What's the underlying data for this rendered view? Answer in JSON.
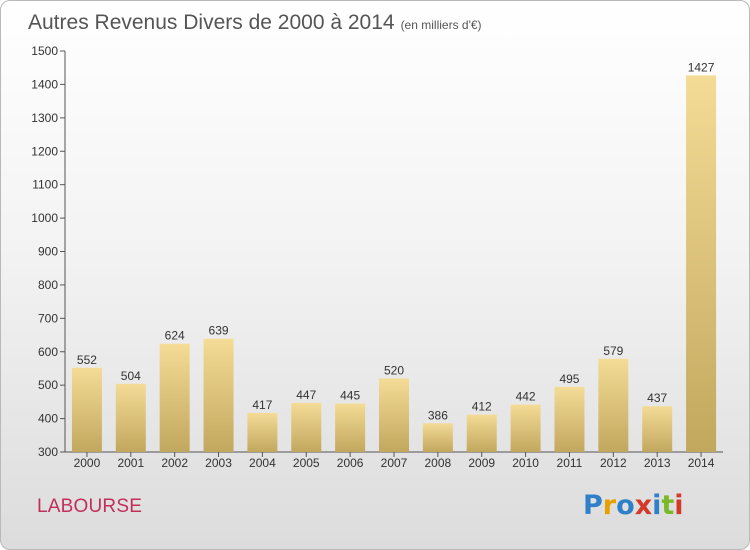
{
  "title": "Autres Revenus Divers de 2000 à 2014",
  "subtitle": "(en milliers d'€)",
  "commune": "LABOURSE",
  "logo": {
    "text": "Proxiti",
    "letter_colors": [
      "#2f80c8",
      "#e8a000",
      "#2f80c8",
      "#d43a2a",
      "#2f80c8",
      "#7ab828",
      "#d43a2a"
    ]
  },
  "colors": {
    "bar_top": "#f4dc96",
    "bar_bottom": "#c2a75e",
    "commune": "#c0305a"
  },
  "chart_data": {
    "type": "bar",
    "title": "Autres Revenus Divers de 2000 à 2014",
    "subtitle": "(en milliers d'€)",
    "categories": [
      "2000",
      "2001",
      "2002",
      "2003",
      "2004",
      "2005",
      "2006",
      "2007",
      "2008",
      "2009",
      "2010",
      "2011",
      "2012",
      "2013",
      "2014"
    ],
    "values": [
      552,
      504,
      624,
      639,
      417,
      447,
      445,
      520,
      386,
      412,
      442,
      495,
      579,
      437,
      1427
    ],
    "ylim": [
      300,
      1500
    ],
    "yticks": [
      300,
      400,
      500,
      600,
      700,
      800,
      900,
      1000,
      1100,
      1200,
      1300,
      1400,
      1500
    ],
    "xlabel": "",
    "ylabel": "",
    "grid": false
  }
}
